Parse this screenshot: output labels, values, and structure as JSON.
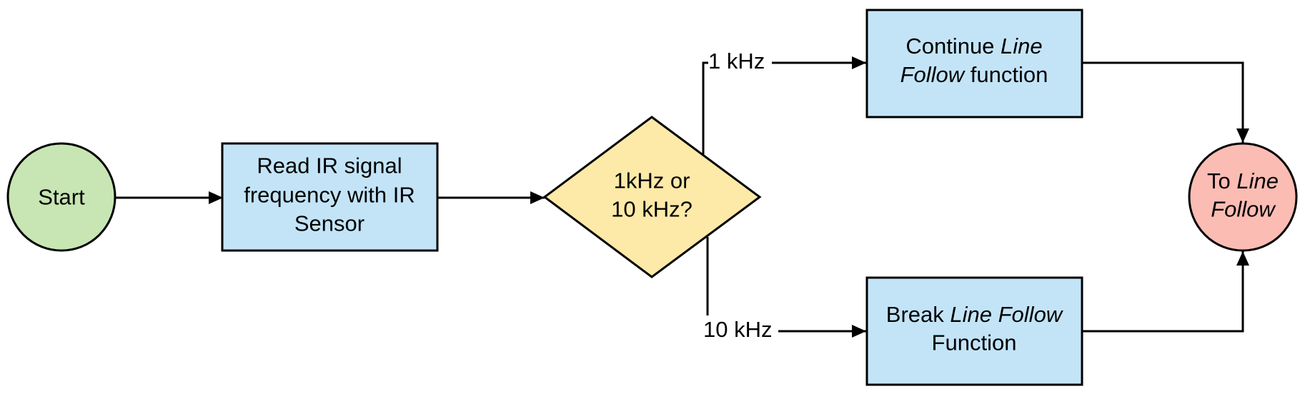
{
  "colors": {
    "start_fill": "#c7e6b3",
    "process_fill": "#c3e4f7",
    "decision_fill": "#fde9a8",
    "end_fill": "#fbbcb4",
    "stroke": "#000000"
  },
  "nodes": {
    "start": {
      "label": "Start"
    },
    "read": {
      "line1": "Read IR signal",
      "line2": "frequency with IR",
      "line3": "Sensor"
    },
    "decision": {
      "line1": "1kHz or",
      "line2": "10 kHz?"
    },
    "continue": {
      "line1_a": "Continue ",
      "line1_b": "Line",
      "line2_a": "Follow",
      "line2_b": " function"
    },
    "break": {
      "line1_a": "Break ",
      "line1_b": "Line Follow",
      "line2": "Function"
    },
    "end": {
      "line1_a": "To ",
      "line1_b": "Line",
      "line2": "Follow"
    }
  },
  "edges": {
    "upper_label": "1 kHz",
    "lower_label": "10 kHz"
  }
}
